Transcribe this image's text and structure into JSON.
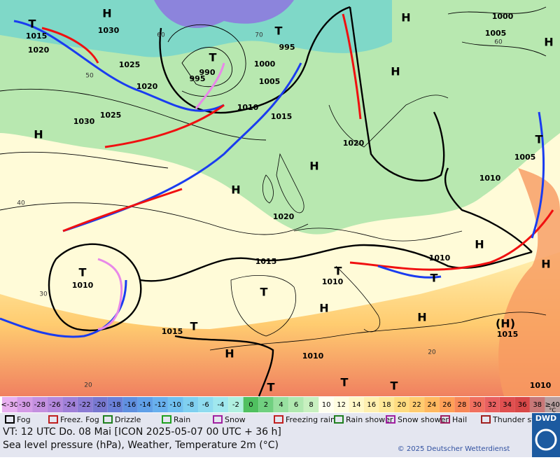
{
  "map": {
    "isobar_labels": [
      "1015",
      "1030",
      "1020",
      "1025",
      "1020",
      "1025",
      "1030",
      "990",
      "995",
      "1000",
      "1005",
      "1010",
      "1015",
      "995",
      "1000",
      "1005",
      "1020",
      "1020",
      "1015",
      "1010",
      "1010",
      "1010",
      "1005",
      "1010",
      "1015",
      "1010",
      "1015",
      "1010"
    ],
    "centers": [
      "H",
      "H",
      "H",
      "T",
      "T",
      "T",
      "T",
      "T",
      "H",
      "T",
      "H",
      "T",
      "T",
      "T",
      "H",
      "T",
      "H",
      "H",
      "H",
      "H",
      "H",
      "H",
      "T",
      "T",
      "(H)"
    ],
    "grid_labels": [
      "60",
      "50",
      "40",
      "30",
      "20",
      "70",
      "60",
      "20"
    ]
  },
  "legend": {
    "temperature": {
      "unit": "°C",
      "labels": [
        "<-30",
        "-30",
        "-28",
        "-26",
        "-24",
        "-22",
        "-20",
        "-18",
        "-16",
        "-14",
        "-12",
        "-10",
        "-8",
        "-6",
        "-4",
        "-2",
        "0",
        "2",
        "4",
        "6",
        "8",
        "10",
        "12",
        "14",
        "16",
        "18",
        "20",
        "22",
        "24",
        "26",
        "28",
        "30",
        "32",
        "34",
        "36",
        "38",
        "≥40"
      ],
      "colors": [
        "#e8b0f0",
        "#d49be6",
        "#c490e0",
        "#b488dc",
        "#a080d8",
        "#8c7cd4",
        "#7878d0",
        "#6a80d8",
        "#6090e0",
        "#60a0e8",
        "#68b0ee",
        "#70c0f0",
        "#80d0f0",
        "#90dcf0",
        "#a0e8ee",
        "#b0f0e0",
        "#50c060",
        "#70d080",
        "#98e0a0",
        "#b0e8b0",
        "#c8f0c0",
        "#fffff0",
        "#fffde0",
        "#fff8c8",
        "#fff0b0",
        "#ffe898",
        "#ffdc80",
        "#ffcc70",
        "#ffb860",
        "#ffa058",
        "#f88858",
        "#f07060",
        "#e86060",
        "#e05050",
        "#d84848",
        "#c87878",
        "#b8a0a0"
      ]
    },
    "symbols": [
      "Fog",
      "Freez. Fog",
      "Drizzle",
      "Rain",
      "Snow",
      "Freezing rain",
      "Rain shower",
      "Snow shower",
      "Hail",
      "Thunder storm"
    ]
  },
  "footer": {
    "valid_time": "VT: 12 UTC Do.  08 Mai [ICON 2025-05-07  00 UTC + 36 h]",
    "description": "Sea level pressure (hPa), Weather, Temperature 2m (°C)",
    "copyright": "© 2025 Deutscher Wetterdienst",
    "logo": "DWD"
  }
}
